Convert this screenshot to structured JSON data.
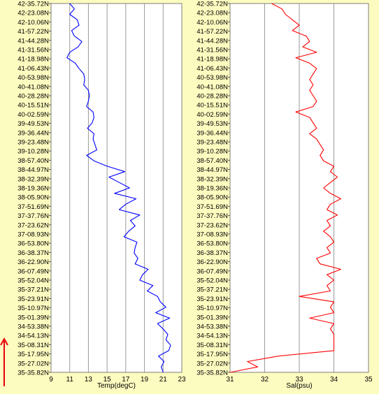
{
  "background_color": "#fdfcc0",
  "arrow_color": "#e8000a",
  "chart_data": [
    {
      "type": "line",
      "xlabel": "Temp(degC)",
      "ylabel": "",
      "xlim": [
        9,
        23
      ],
      "x_ticks": [
        9,
        11,
        13,
        15,
        17,
        19,
        21,
        23
      ],
      "grid": true,
      "line_color": "#0000ff",
      "y_tick_labels": [
        "42-35.72N",
        "42-23.08N",
        "42-10.06N",
        "41-57.22N",
        "41-44.28N",
        "41-31.56N",
        "41-18.98N",
        "41-06.43N",
        "40-53.98N",
        "40-41.08N",
        "40-28.28N",
        "40-15.51N",
        "40-02.59N",
        "39-49.53N",
        "39-36.44N",
        "39-23.48N",
        "39-10.28N",
        "38-57.40N",
        "38-44.97N",
        "38-32.39N",
        "38-19.36N",
        "38-05.90N",
        "37-51.69N",
        "37-37.76N",
        "37-23.62N",
        "37-08.93N",
        "36-53.80N",
        "36-38.37N",
        "36-22.90N",
        "36-07.49N",
        "35-52.04N",
        "35-37.21N",
        "35-23.91N",
        "35-10.97N",
        "35-01.39N",
        "34-53.38N",
        "34-54.13N",
        "35-08.31N",
        "35-17.95N",
        "35-27.02N",
        "35-35.82N"
      ],
      "series": [
        {
          "values": [
            11.0,
            11.5,
            11.0,
            11.8,
            12.0,
            11.2,
            11.5,
            12.3,
            11.9,
            11.0,
            10.7,
            11.6,
            12.0,
            12.5,
            12.6,
            12.5,
            13.0,
            13.1,
            13.0,
            12.8,
            13.5,
            13.6,
            13.4,
            12.9,
            13.6,
            13.5,
            13.7,
            13.9,
            12.8,
            13.6,
            15.0,
            16.9,
            15.2,
            16.3,
            17.4,
            15.8,
            18.1,
            17.0,
            16.3,
            18.5,
            17.5,
            18.0,
            17.3,
            16.8,
            18.2,
            18.0,
            17.9,
            18.3,
            18.0,
            19.4,
            18.8,
            18.5,
            19.9,
            19.3,
            20.4,
            20.7,
            21.3,
            20.2,
            21.7,
            20.4,
            21.0,
            21.5,
            21.3,
            21.8,
            21.6,
            20.5,
            21.1,
            20.8,
            21.0
          ]
        }
      ]
    },
    {
      "type": "line",
      "xlabel": "Sal(psu)",
      "ylabel": "",
      "xlim": [
        31,
        35
      ],
      "x_ticks": [
        31,
        32,
        33,
        34,
        35
      ],
      "grid": true,
      "line_color": "#ff0000",
      "y_tick_labels": [
        "42-35.72N",
        "42-23.08N",
        "42-10.06N",
        "41-57.22N",
        "41-44.28N",
        "41-31.56N",
        "41-18.98N",
        "41-06.43N",
        "40-53.98N",
        "40-41.08N",
        "40-28.28N",
        "40-15.51N",
        "40-02.59N",
        "39-49.53N",
        "39-36.44N",
        "39-23.48N",
        "39-10.28N",
        "38-57.40N",
        "38-44.97N",
        "38-32.39N",
        "38-19.36N",
        "38-05.90N",
        "37-51.69N",
        "37-37.76N",
        "37-23.62N",
        "37-08.93N",
        "36-53.80N",
        "36-38.37N",
        "36-22.90N",
        "36-07.49N",
        "35-52.04N",
        "35-37.21N",
        "35-23.91N",
        "35-10.97N",
        "35-01.39N",
        "34-53.38N",
        "34-54.13N",
        "35-08.31N",
        "35-17.95N",
        "35-27.02N",
        "35-35.82N"
      ],
      "series": [
        {
          "values": [
            32.2,
            32.5,
            32.6,
            32.8,
            33.0,
            32.8,
            33.2,
            33.3,
            33.1,
            33.5,
            32.9,
            33.3,
            33.5,
            33.4,
            33.3,
            33.4,
            33.3,
            33.4,
            33.5,
            33.4,
            32.9,
            33.3,
            33.4,
            33.5,
            33.3,
            33.5,
            33.6,
            33.7,
            33.6,
            33.7,
            34.0,
            33.9,
            34.1,
            33.9,
            33.7,
            33.9,
            34.2,
            33.9,
            33.8,
            34.1,
            33.8,
            33.9,
            33.7,
            33.9,
            34.0,
            33.8,
            33.9,
            33.5,
            33.6,
            34.2,
            33.8,
            34.0,
            33.8,
            33.9,
            33.0,
            34.0,
            33.9,
            34.0,
            33.3,
            34.0,
            33.9,
            34.0,
            34.0,
            34.0,
            34.0,
            32.4,
            31.5,
            31.8,
            31.0
          ]
        }
      ]
    }
  ]
}
